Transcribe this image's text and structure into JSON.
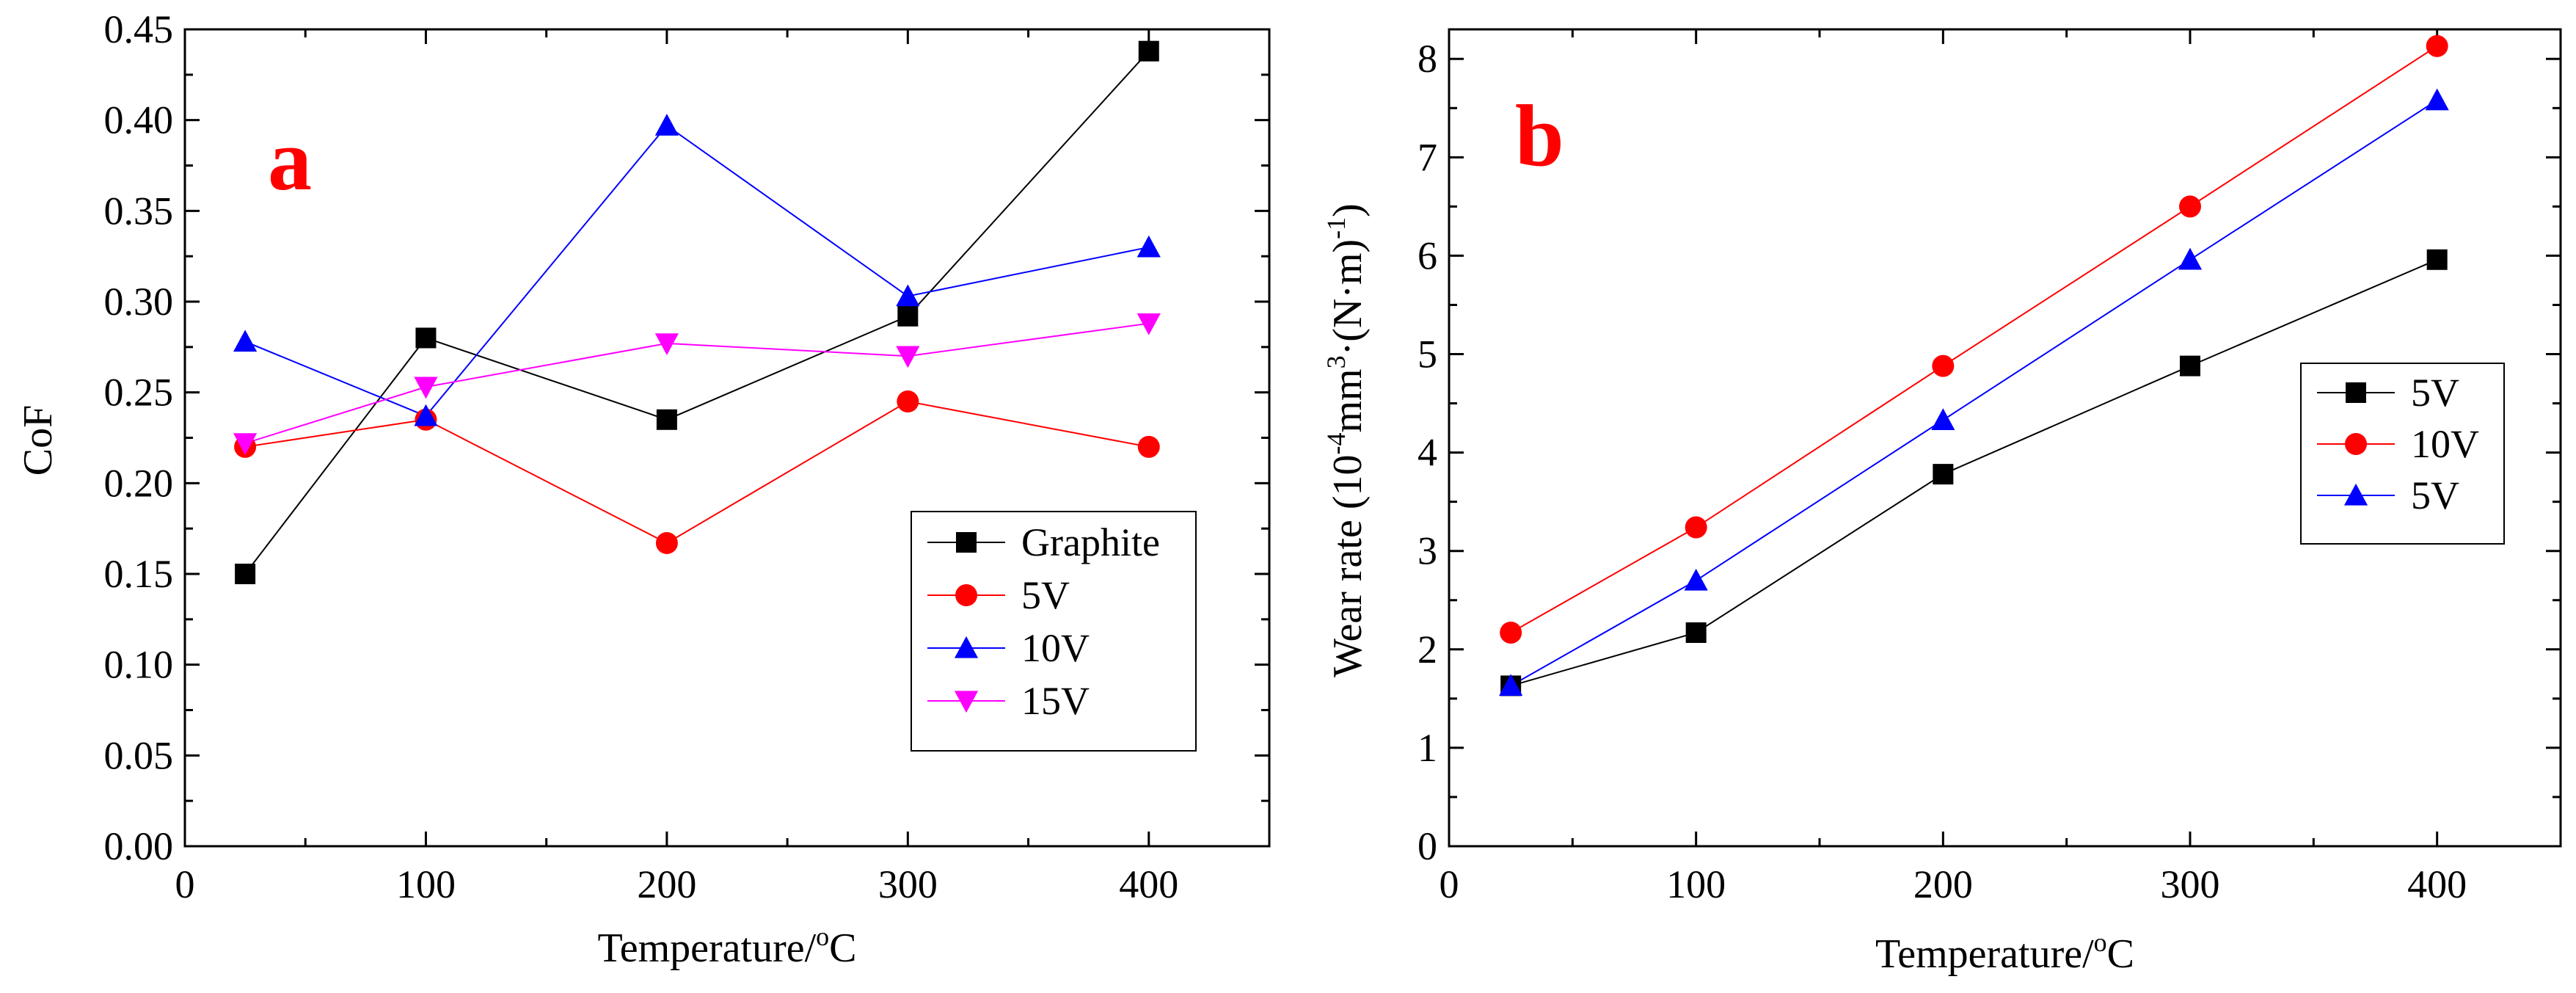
{
  "chart_data": [
    {
      "type": "line",
      "panel_label": "a",
      "panel_label_color": "#ff0000",
      "xlabel": "Temperature/",
      "xlabel_sup": "o",
      "xlabel_tail": "C",
      "ylabel": "CoF",
      "xlim": [
        0,
        450
      ],
      "ylim": [
        0.0,
        0.45
      ],
      "xticks": [
        0,
        100,
        200,
        300,
        400
      ],
      "xtick_labels": [
        "0",
        "100",
        "200",
        "300",
        "400"
      ],
      "yticks": [
        0.0,
        0.05,
        0.1,
        0.15,
        0.2,
        0.25,
        0.3,
        0.35,
        0.4,
        0.45
      ],
      "ytick_labels": [
        "0.00",
        "0.05",
        "0.10",
        "0.15",
        "0.20",
        "0.25",
        "0.30",
        "0.35",
        "0.40",
        "0.45"
      ],
      "grid": false,
      "legend_position": "lower-right",
      "x": [
        25,
        100,
        200,
        300,
        400
      ],
      "series": [
        {
          "name": "Graphite",
          "marker": "square",
          "color": "#000000",
          "values": [
            0.15,
            0.28,
            0.235,
            0.292,
            0.438
          ]
        },
        {
          "name": "5V",
          "marker": "circle",
          "color": "#ff0000",
          "values": [
            0.22,
            0.235,
            0.167,
            0.245,
            0.22
          ]
        },
        {
          "name": "10V",
          "marker": "triangle-up",
          "color": "#0000ff",
          "values": [
            0.278,
            0.237,
            0.397,
            0.303,
            0.33
          ]
        },
        {
          "name": "15V",
          "marker": "triangle-down",
          "color": "#ff00ff",
          "values": [
            0.222,
            0.253,
            0.277,
            0.27,
            0.288
          ]
        }
      ]
    },
    {
      "type": "line",
      "panel_label": "b",
      "panel_label_color": "#ff0000",
      "xlabel": "Temperature/",
      "xlabel_sup": "o",
      "xlabel_tail": "C",
      "ylabel": "Wear rate (10",
      "ylabel_sup1": "-4",
      "ylabel_mid": "mm",
      "ylabel_sup2": "3",
      "ylabel_mid2": "·(N·m)",
      "ylabel_sup3": "-1",
      "ylabel_tail": ")",
      "xlim": [
        0,
        450
      ],
      "ylim": [
        0,
        8.3
      ],
      "xticks": [
        0,
        100,
        200,
        300,
        400
      ],
      "xtick_labels": [
        "0",
        "100",
        "200",
        "300",
        "400"
      ],
      "yticks": [
        0,
        1,
        2,
        3,
        4,
        5,
        6,
        7,
        8
      ],
      "ytick_labels": [
        "0",
        "1",
        "2",
        "3",
        "4",
        "5",
        "6",
        "7",
        "8"
      ],
      "grid": false,
      "legend_position": "middle-right",
      "x": [
        25,
        100,
        200,
        300,
        400
      ],
      "series": [
        {
          "name": "5V",
          "marker": "square",
          "color": "#000000",
          "values": [
            1.63,
            2.17,
            3.78,
            4.88,
            5.96
          ]
        },
        {
          "name": "10V",
          "marker": "circle",
          "color": "#ff0000",
          "values": [
            2.17,
            3.24,
            4.88,
            6.5,
            8.13
          ]
        },
        {
          "name": "5V",
          "marker": "triangle-up",
          "color": "#0000ff",
          "values": [
            1.63,
            2.7,
            4.33,
            5.96,
            7.58
          ]
        }
      ]
    }
  ]
}
